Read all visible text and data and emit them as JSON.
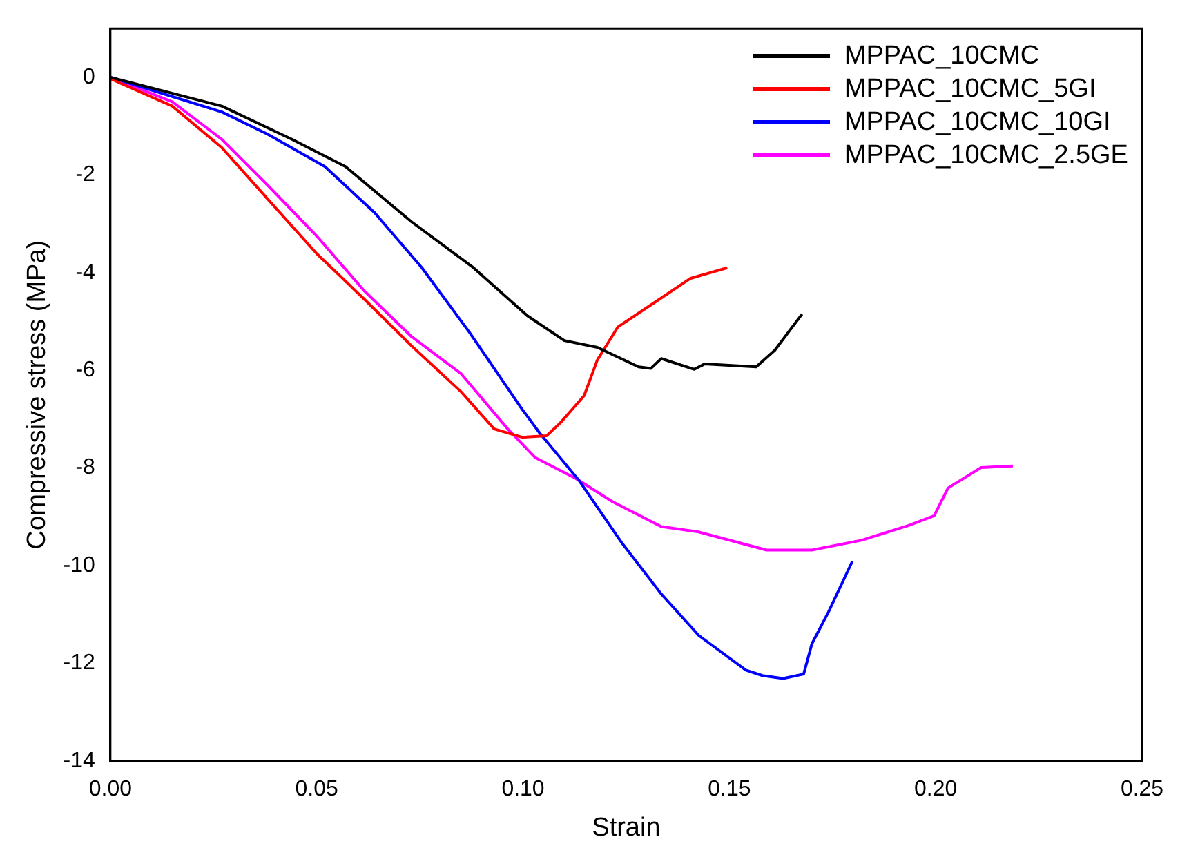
{
  "chart_data": {
    "type": "line",
    "xlabel": "Strain",
    "ylabel": "Compressive stress (MPa)",
    "xlim": [
      0,
      0.25
    ],
    "xticks": [
      {
        "value": 0,
        "label": "0.00"
      },
      {
        "value": 0.05,
        "label": "0.05"
      },
      {
        "value": 0.1,
        "label": "0.10"
      },
      {
        "value": 0.15,
        "label": "0.15"
      },
      {
        "value": 0.2,
        "label": "0.20"
      },
      {
        "value": 0.25,
        "label": "0.25"
      }
    ],
    "ylim": [
      -14,
      1
    ],
    "yticks": [
      -14,
      -12,
      -10,
      -8,
      -6,
      -4,
      -2,
      0
    ],
    "grid": false,
    "legend": "top right",
    "marker": "none",
    "line_style": "solid",
    "series": [
      {
        "name": "MPPAC_10CMC",
        "color": "#000000",
        "x": [
          0,
          0.027,
          0.044,
          0.057,
          0.073,
          0.088,
          0.101,
          0.11,
          0.118,
          0.128,
          0.131,
          0.1335,
          0.1415,
          0.144,
          0.1565,
          0.161,
          0.1676
        ],
        "values": [
          0,
          -0.59,
          -1.27,
          -1.83,
          -2.96,
          -3.9,
          -4.88,
          -5.39,
          -5.53,
          -5.93,
          -5.96,
          -5.76,
          -5.98,
          -5.87,
          -5.93,
          -5.59,
          -4.85
        ]
      },
      {
        "name": "MPPAC_10CMC_5GI",
        "color": "#ff0000",
        "x": [
          0,
          0.015,
          0.027,
          0.038,
          0.05,
          0.0615,
          0.073,
          0.085,
          0.093,
          0.0998,
          0.1057,
          0.109,
          0.1148,
          0.118,
          0.123,
          0.131,
          0.1405,
          0.1495
        ],
        "values": [
          -0.03,
          -0.59,
          -1.44,
          -2.48,
          -3.61,
          -4.54,
          -5.5,
          -6.44,
          -7.2,
          -7.37,
          -7.34,
          -7.08,
          -6.52,
          -5.79,
          -5.11,
          -4.66,
          -4.12,
          -3.9
        ]
      },
      {
        "name": "MPPAC_10CMC_10GI",
        "color": "#0000ff",
        "x": [
          0,
          0.027,
          0.038,
          0.052,
          0.064,
          0.0755,
          0.087,
          0.0998,
          0.104,
          0.1137,
          0.124,
          0.1335,
          0.1426,
          0.154,
          0.158,
          0.163,
          0.168,
          0.17,
          0.174,
          0.1798
        ],
        "values": [
          0,
          -0.71,
          -1.16,
          -1.83,
          -2.77,
          -3.9,
          -5.22,
          -6.8,
          -7.28,
          -8.27,
          -9.54,
          -10.58,
          -11.43,
          -12.14,
          -12.25,
          -12.31,
          -12.22,
          -11.6,
          -10.95,
          -9.91
        ]
      },
      {
        "name": "MPPAC_10CMC_2.5GE",
        "color": "#ff00ff",
        "x": [
          0,
          0.015,
          0.027,
          0.038,
          0.05,
          0.0615,
          0.073,
          0.085,
          0.0963,
          0.103,
          0.1127,
          0.1217,
          0.1335,
          0.1426,
          0.159,
          0.17,
          0.182,
          0.1937,
          0.1996,
          0.203,
          0.211,
          0.2187
        ],
        "values": [
          0,
          -0.5,
          -1.27,
          -2.2,
          -3.25,
          -4.37,
          -5.31,
          -6.07,
          -7.2,
          -7.79,
          -8.21,
          -8.69,
          -9.2,
          -9.31,
          -9.68,
          -9.68,
          -9.48,
          -9.17,
          -8.98,
          -8.41,
          -7.99,
          -7.96
        ]
      }
    ]
  }
}
